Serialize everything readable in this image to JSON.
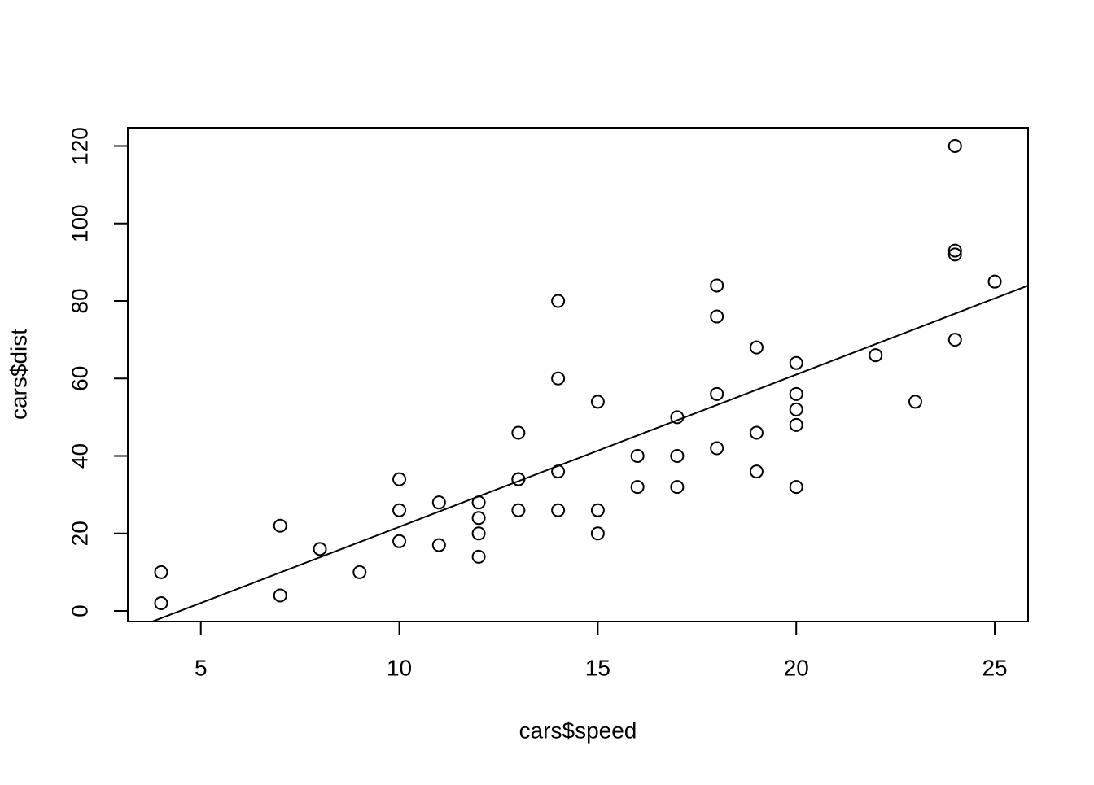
{
  "chart_data": {
    "type": "scatter",
    "x_label": "cars$speed",
    "y_label": "cars$dist",
    "series": [
      {
        "name": "cars",
        "x": [
          4,
          4,
          7,
          7,
          8,
          9,
          10,
          10,
          10,
          11,
          11,
          12,
          12,
          12,
          12,
          13,
          13,
          13,
          13,
          14,
          14,
          14,
          14,
          15,
          15,
          15,
          16,
          16,
          17,
          17,
          17,
          18,
          18,
          18,
          18,
          19,
          19,
          19,
          20,
          20,
          20,
          20,
          20,
          22,
          23,
          24,
          24,
          24,
          24,
          25
        ],
        "values": [
          2,
          10,
          4,
          22,
          16,
          10,
          18,
          26,
          34,
          17,
          28,
          14,
          20,
          24,
          28,
          26,
          34,
          34,
          46,
          26,
          36,
          60,
          80,
          20,
          26,
          54,
          32,
          40,
          32,
          40,
          50,
          42,
          56,
          76,
          84,
          36,
          46,
          68,
          32,
          48,
          52,
          56,
          64,
          66,
          54,
          70,
          92,
          93,
          120,
          85
        ],
        "color": "#000000"
      }
    ],
    "abline": {
      "intercept": -17.58,
      "slope": 3.93
    },
    "xlim": [
      3.16,
      25.84
    ],
    "ylim": [
      -2.72,
      124.72
    ],
    "xticks": [
      5,
      10,
      15,
      20,
      25
    ],
    "yticks": [
      0,
      20,
      40,
      60,
      80,
      100,
      120
    ]
  }
}
